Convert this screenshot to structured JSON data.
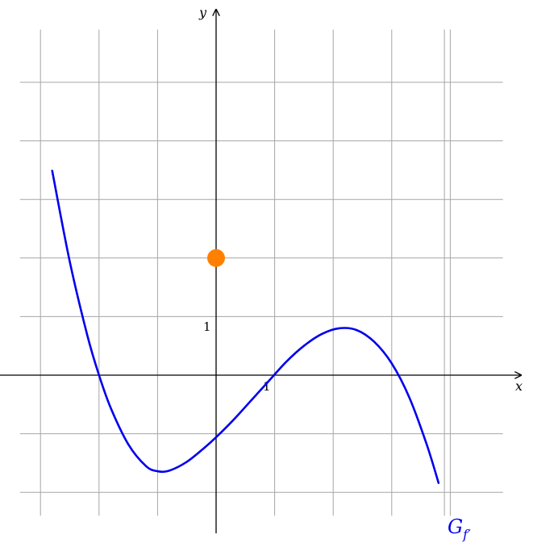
{
  "chart_data": {
    "type": "line",
    "title": "",
    "xlabel": "x",
    "ylabel": "y",
    "xlim": [
      -3.7,
      5.2
    ],
    "ylim": [
      -2.7,
      6.3
    ],
    "grid": true,
    "x_tick_label": "1",
    "y_tick_label": "1",
    "colors": {
      "curve": "#0000ee",
      "point": "#ff8000",
      "grid": "#a6a6a6",
      "axis": "#000000"
    },
    "series": [
      {
        "name": "G",
        "name_subscript": "f′",
        "x": [
          -2.8,
          -2.5,
          -2.2,
          -2.0,
          -1.8,
          -1.5,
          -1.2,
          -1.0,
          -0.8,
          -0.5,
          -0.2,
          0.0,
          0.3,
          0.6,
          0.9,
          1.2,
          1.5,
          1.8,
          2.1,
          2.4,
          2.7,
          3.0,
          3.3,
          3.6,
          3.8
        ],
        "y": [
          3.49,
          1.94,
          0.68,
          0.0,
          -0.56,
          -1.18,
          -1.55,
          -1.64,
          -1.63,
          -1.48,
          -1.24,
          -1.06,
          -0.76,
          -0.43,
          -0.1,
          0.23,
          0.5,
          0.7,
          0.8,
          0.77,
          0.57,
          0.2,
          -0.38,
          -1.19,
          -1.84
        ]
      }
    ],
    "points": [
      {
        "x": 0,
        "y": 2
      }
    ]
  }
}
